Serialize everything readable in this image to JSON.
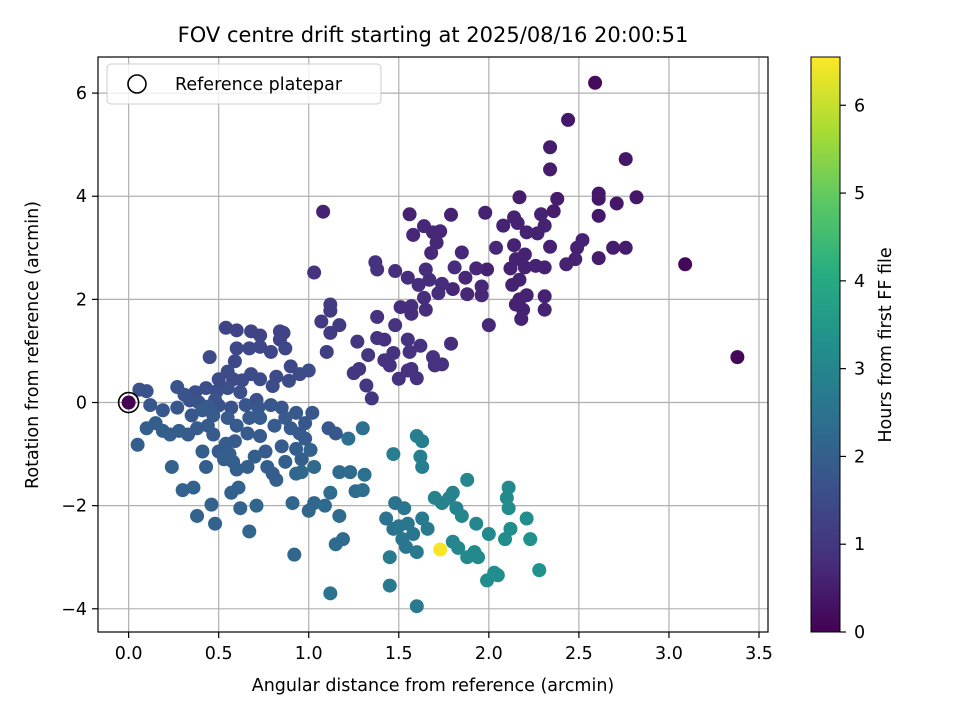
{
  "chart_data": {
    "type": "scatter",
    "title": "FOV centre drift starting at 2025/08/16 20:00:51",
    "xlabel": "Angular distance from reference (arcmin)",
    "ylabel": "Rotation from reference (arcmin)",
    "xlim": [
      -0.17,
      3.55
    ],
    "ylim": [
      -4.45,
      6.7
    ],
    "xticks": [
      0.0,
      0.5,
      1.0,
      1.5,
      2.0,
      2.5,
      3.0,
      3.5
    ],
    "xtick_labels": [
      "0.0",
      "0.5",
      "1.0",
      "1.5",
      "2.0",
      "2.5",
      "3.0",
      "3.5"
    ],
    "yticks": [
      -4,
      -2,
      0,
      2,
      4,
      6
    ],
    "ytick_labels": [
      "−4",
      "−2",
      "0",
      "2",
      "4",
      "6"
    ],
    "grid": true,
    "legend": {
      "position": "top-left",
      "entries": [
        "Reference platepar"
      ]
    },
    "reference_point": {
      "x": 0.0,
      "y": 0.0
    },
    "colorbar": {
      "label": "Hours from first FF file",
      "colormap": "viridis",
      "range": [
        0,
        6.55
      ],
      "ticks": [
        0,
        1,
        2,
        3,
        4,
        5,
        6
      ],
      "tick_labels": [
        "0",
        "1",
        "2",
        "3",
        "4",
        "5",
        "6"
      ]
    },
    "points": [
      [
        2.59,
        6.2,
        0.2
      ],
      [
        2.44,
        5.48,
        0.4
      ],
      [
        2.34,
        4.95,
        0.5
      ],
      [
        2.76,
        4.72,
        0.4
      ],
      [
        2.34,
        4.52,
        0.5
      ],
      [
        2.61,
        4.05,
        0.4
      ],
      [
        2.61,
        3.95,
        0.4
      ],
      [
        2.82,
        3.98,
        0.4
      ],
      [
        2.71,
        3.86,
        0.4
      ],
      [
        2.38,
        3.95,
        0.5
      ],
      [
        2.17,
        3.98,
        0.5
      ],
      [
        2.61,
        3.62,
        0.4
      ],
      [
        2.36,
        3.71,
        0.5
      ],
      [
        2.29,
        3.65,
        0.6
      ],
      [
        2.14,
        3.59,
        0.6
      ],
      [
        1.98,
        3.68,
        0.6
      ],
      [
        1.79,
        3.64,
        0.6
      ],
      [
        1.56,
        3.65,
        0.6
      ],
      [
        1.64,
        3.42,
        0.7
      ],
      [
        1.69,
        3.3,
        0.7
      ],
      [
        1.58,
        3.25,
        0.7
      ],
      [
        1.73,
        3.32,
        0.7
      ],
      [
        1.71,
        3.1,
        0.7
      ],
      [
        1.68,
        2.9,
        0.7
      ],
      [
        1.85,
        2.91,
        0.7
      ],
      [
        1.81,
        2.62,
        0.8
      ],
      [
        2.04,
        3.0,
        0.7
      ],
      [
        2.08,
        3.43,
        0.6
      ],
      [
        2.16,
        3.48,
        0.6
      ],
      [
        2.21,
        3.3,
        0.6
      ],
      [
        2.27,
        3.28,
        0.6
      ],
      [
        2.31,
        3.43,
        0.6
      ],
      [
        2.34,
        3.02,
        0.6
      ],
      [
        2.14,
        3.05,
        0.6
      ],
      [
        2.2,
        2.87,
        0.6
      ],
      [
        2.15,
        2.78,
        0.6
      ],
      [
        2.12,
        2.6,
        0.6
      ],
      [
        2.2,
        2.62,
        0.6
      ],
      [
        2.26,
        2.65,
        0.6
      ],
      [
        2.31,
        2.62,
        0.6
      ],
      [
        2.43,
        2.68,
        0.6
      ],
      [
        2.48,
        2.78,
        0.6
      ],
      [
        2.49,
        3.0,
        0.6
      ],
      [
        2.52,
        3.15,
        0.6
      ],
      [
        2.61,
        2.8,
        0.5
      ],
      [
        2.69,
        3.0,
        0.5
      ],
      [
        2.76,
        3.0,
        0.5
      ],
      [
        2.17,
        2.38,
        0.6
      ],
      [
        1.99,
        2.58,
        0.6
      ],
      [
        1.93,
        2.6,
        0.7
      ],
      [
        1.87,
        2.42,
        0.7
      ],
      [
        1.8,
        2.2,
        0.7
      ],
      [
        1.74,
        2.3,
        0.8
      ],
      [
        1.65,
        2.58,
        0.8
      ],
      [
        1.67,
        2.38,
        0.8
      ],
      [
        1.61,
        2.28,
        0.8
      ],
      [
        1.55,
        2.42,
        0.8
      ],
      [
        1.48,
        2.55,
        0.8
      ],
      [
        1.38,
        2.58,
        0.9
      ],
      [
        1.37,
        2.72,
        0.9
      ],
      [
        1.72,
        2.12,
        0.8
      ],
      [
        1.64,
        2.03,
        0.8
      ],
      [
        1.65,
        1.8,
        0.8
      ],
      [
        1.57,
        1.87,
        0.8
      ],
      [
        1.51,
        1.85,
        0.8
      ],
      [
        1.57,
        1.72,
        0.8
      ],
      [
        1.48,
        1.5,
        0.9
      ],
      [
        1.38,
        1.66,
        0.9
      ],
      [
        1.38,
        1.25,
        0.9
      ],
      [
        1.42,
        1.22,
        0.9
      ],
      [
        1.55,
        1.22,
        0.9
      ],
      [
        1.62,
        1.1,
        0.9
      ],
      [
        1.56,
        0.98,
        0.9
      ],
      [
        1.47,
        0.96,
        0.9
      ],
      [
        1.42,
        0.82,
        0.9
      ],
      [
        1.27,
        1.18,
        1.0
      ],
      [
        1.33,
        0.92,
        1.0
      ],
      [
        1.28,
        0.65,
        1.0
      ],
      [
        1.25,
        0.57,
        1.0
      ],
      [
        1.32,
        0.33,
        1.0
      ],
      [
        1.45,
        0.72,
        0.9
      ],
      [
        1.55,
        0.62,
        0.9
      ],
      [
        1.57,
        0.65,
        0.9
      ],
      [
        1.6,
        0.47,
        0.9
      ],
      [
        1.5,
        0.46,
        0.9
      ],
      [
        1.69,
        0.88,
        0.9
      ],
      [
        1.7,
        0.72,
        0.9
      ],
      [
        1.74,
        0.74,
        0.9
      ],
      [
        1.35,
        0.08,
        1.0
      ],
      [
        1.79,
        1.14,
        0.8
      ],
      [
        2.0,
        1.5,
        0.7
      ],
      [
        2.18,
        1.62,
        0.6
      ],
      [
        2.15,
        1.9,
        0.6
      ],
      [
        2.17,
        2.0,
        0.6
      ],
      [
        2.19,
        1.8,
        0.6
      ],
      [
        2.31,
        1.8,
        0.6
      ],
      [
        2.31,
        2.06,
        0.6
      ],
      [
        2.21,
        2.08,
        0.6
      ],
      [
        2.13,
        2.28,
        0.6
      ],
      [
        1.96,
        2.08,
        0.7
      ],
      [
        1.88,
        2.1,
        0.7
      ],
      [
        1.96,
        2.25,
        0.7
      ],
      [
        1.17,
        1.5,
        1.1
      ],
      [
        1.12,
        1.35,
        1.1
      ],
      [
        1.12,
        1.9,
        1.1
      ],
      [
        1.12,
        1.78,
        1.1
      ],
      [
        1.07,
        1.57,
        1.1
      ],
      [
        1.08,
        3.7,
        0.6
      ],
      [
        1.03,
        2.52,
        0.9
      ],
      [
        1.1,
        0.98,
        1.2
      ],
      [
        0.54,
        1.45,
        1.3
      ],
      [
        0.6,
        1.4,
        1.3
      ],
      [
        0.68,
        1.38,
        1.3
      ],
      [
        0.73,
        1.3,
        1.3
      ],
      [
        0.84,
        1.38,
        1.3
      ],
      [
        0.86,
        1.35,
        1.3
      ],
      [
        0.84,
        1.22,
        1.3
      ],
      [
        0.87,
        1.05,
        1.4
      ],
      [
        0.79,
        0.98,
        1.4
      ],
      [
        0.73,
        1.08,
        1.4
      ],
      [
        0.67,
        1.05,
        1.4
      ],
      [
        0.6,
        1.05,
        1.4
      ],
      [
        0.59,
        0.8,
        1.4
      ],
      [
        0.55,
        0.6,
        1.5
      ],
      [
        0.5,
        0.45,
        1.5
      ],
      [
        0.45,
        0.88,
        1.5
      ],
      [
        0.58,
        0.45,
        1.5
      ],
      [
        0.63,
        0.43,
        1.5
      ],
      [
        0.68,
        0.55,
        1.5
      ],
      [
        0.73,
        0.45,
        1.5
      ],
      [
        0.82,
        0.5,
        1.5
      ],
      [
        0.8,
        0.32,
        1.5
      ],
      [
        0.89,
        0.42,
        1.5
      ],
      [
        0.95,
        0.55,
        1.5
      ],
      [
        1.0,
        0.62,
        1.5
      ],
      [
        0.9,
        0.7,
        1.4
      ],
      [
        0.71,
        0.05,
        1.6
      ],
      [
        0.62,
        0.2,
        1.6
      ],
      [
        0.55,
        0.28,
        1.6
      ],
      [
        0.49,
        0.22,
        1.6
      ],
      [
        0.43,
        0.28,
        1.6
      ],
      [
        0.37,
        0.2,
        1.6
      ],
      [
        0.31,
        0.15,
        1.7
      ],
      [
        0.27,
        0.3,
        1.7
      ],
      [
        0.1,
        0.22,
        1.7
      ],
      [
        0.06,
        0.25,
        1.7
      ],
      [
        0.34,
        0.04,
        1.7
      ],
      [
        0.39,
        0.0,
        1.7
      ],
      [
        0.48,
        0.05,
        1.7
      ],
      [
        0.5,
        -0.06,
        1.7
      ],
      [
        0.57,
        -0.1,
        1.7
      ],
      [
        0.65,
        -0.05,
        1.8
      ],
      [
        0.72,
        -0.1,
        1.8
      ],
      [
        0.79,
        -0.05,
        1.8
      ],
      [
        0.85,
        -0.1,
        1.8
      ],
      [
        0.93,
        -0.2,
        1.8
      ],
      [
        1.02,
        -0.2,
        1.8
      ],
      [
        0.98,
        -0.4,
        1.8
      ],
      [
        1.11,
        -0.5,
        1.8
      ],
      [
        1.15,
        -0.6,
        1.8
      ],
      [
        0.12,
        -0.05,
        1.8
      ],
      [
        0.19,
        -0.15,
        1.8
      ],
      [
        0.27,
        -0.1,
        1.8
      ],
      [
        0.35,
        -0.25,
        1.8
      ],
      [
        0.41,
        -0.15,
        1.9
      ],
      [
        0.44,
        -0.08,
        1.9
      ],
      [
        0.47,
        -0.25,
        1.9
      ],
      [
        0.55,
        -0.3,
        1.9
      ],
      [
        0.6,
        -0.45,
        1.9
      ],
      [
        0.67,
        -0.3,
        1.9
      ],
      [
        0.73,
        -0.3,
        1.9
      ],
      [
        0.81,
        -0.45,
        1.9
      ],
      [
        0.87,
        -0.3,
        1.9
      ],
      [
        0.9,
        -0.5,
        1.9
      ],
      [
        0.95,
        -0.6,
        1.9
      ],
      [
        0.98,
        -0.7,
        1.9
      ],
      [
        0.85,
        -0.85,
        1.9
      ],
      [
        0.76,
        -0.95,
        1.9
      ],
      [
        0.73,
        -0.65,
        1.9
      ],
      [
        0.66,
        -0.6,
        1.9
      ],
      [
        0.59,
        -0.75,
        1.9
      ],
      [
        0.54,
        -0.8,
        1.9
      ],
      [
        0.5,
        -0.95,
        1.9
      ],
      [
        0.47,
        -0.62,
        1.9
      ],
      [
        0.44,
        -0.45,
        1.9
      ],
      [
        0.38,
        -0.5,
        1.9
      ],
      [
        0.33,
        -0.62,
        1.9
      ],
      [
        0.28,
        -0.55,
        2.0
      ],
      [
        0.23,
        -0.62,
        2.0
      ],
      [
        0.19,
        -0.55,
        2.0
      ],
      [
        0.15,
        -0.4,
        2.0
      ],
      [
        0.1,
        -0.5,
        2.0
      ],
      [
        0.05,
        -0.82,
        2.0
      ],
      [
        0.41,
        -0.95,
        2.0
      ],
      [
        0.43,
        -1.25,
        2.0
      ],
      [
        0.53,
        -1.1,
        2.0
      ],
      [
        0.56,
        -1.0,
        2.0
      ],
      [
        0.58,
        -1.15,
        2.0
      ],
      [
        0.6,
        -1.3,
        2.0
      ],
      [
        0.66,
        -1.25,
        2.0
      ],
      [
        0.7,
        -1.05,
        2.0
      ],
      [
        0.77,
        -1.25,
        2.0
      ],
      [
        0.8,
        -1.38,
        2.0
      ],
      [
        0.82,
        -1.5,
        2.0
      ],
      [
        0.87,
        -1.15,
        2.0
      ],
      [
        0.93,
        -0.9,
        2.0
      ],
      [
        0.96,
        -1.1,
        2.0
      ],
      [
        1.01,
        -0.92,
        2.1
      ],
      [
        0.24,
        -1.25,
        2.1
      ],
      [
        0.3,
        -1.7,
        2.1
      ],
      [
        0.36,
        -1.65,
        2.1
      ],
      [
        0.38,
        -2.2,
        2.1
      ],
      [
        0.46,
        -1.98,
        2.1
      ],
      [
        0.48,
        -2.35,
        2.1
      ],
      [
        0.57,
        -1.75,
        2.1
      ],
      [
        0.61,
        -1.65,
        2.1
      ],
      [
        0.62,
        -2.05,
        2.1
      ],
      [
        0.67,
        -2.5,
        2.2
      ],
      [
        0.71,
        -2.0,
        2.2
      ],
      [
        0.93,
        -1.38,
        2.2
      ],
      [
        0.96,
        -1.35,
        2.2
      ],
      [
        0.91,
        -1.95,
        2.2
      ],
      [
        0.92,
        -2.95,
        2.2
      ],
      [
        1.0,
        -2.1,
        2.2
      ],
      [
        1.03,
        -1.95,
        2.2
      ],
      [
        1.03,
        -1.25,
        2.3
      ],
      [
        1.09,
        -2.0,
        2.3
      ],
      [
        1.12,
        -1.75,
        2.3
      ],
      [
        1.17,
        -2.2,
        2.3
      ],
      [
        1.15,
        -2.75,
        2.3
      ],
      [
        1.19,
        -2.65,
        2.3
      ],
      [
        1.17,
        -1.35,
        2.3
      ],
      [
        1.23,
        -1.35,
        2.3
      ],
      [
        1.26,
        -1.72,
        2.3
      ],
      [
        1.3,
        -1.7,
        2.4
      ],
      [
        1.22,
        -0.7,
        2.4
      ],
      [
        1.3,
        -0.5,
        2.4
      ],
      [
        1.31,
        -1.4,
        2.4
      ],
      [
        1.12,
        -3.7,
        2.5
      ],
      [
        1.43,
        -2.25,
        2.5
      ],
      [
        1.48,
        -1.95,
        2.5
      ],
      [
        1.47,
        -2.45,
        2.5
      ],
      [
        1.5,
        -2.4,
        2.6
      ],
      [
        1.53,
        -2.05,
        2.6
      ],
      [
        1.55,
        -2.35,
        2.6
      ],
      [
        1.52,
        -2.65,
        2.6
      ],
      [
        1.54,
        -2.8,
        2.6
      ],
      [
        1.58,
        -2.55,
        2.6
      ],
      [
        1.6,
        -2.9,
        2.7
      ],
      [
        1.63,
        -2.25,
        2.7
      ],
      [
        1.66,
        -2.45,
        2.7
      ],
      [
        1.45,
        -3.0,
        2.7
      ],
      [
        1.45,
        -3.55,
        2.7
      ],
      [
        1.6,
        -3.95,
        2.7
      ],
      [
        1.6,
        -0.65,
        2.8
      ],
      [
        1.63,
        -0.75,
        2.8
      ],
      [
        1.62,
        -1.05,
        2.8
      ],
      [
        1.63,
        -1.25,
        2.8
      ],
      [
        1.47,
        -1.0,
        2.8
      ],
      [
        1.7,
        -1.85,
        2.9
      ],
      [
        1.74,
        -1.95,
        2.9
      ],
      [
        1.78,
        -1.85,
        2.9
      ],
      [
        1.8,
        -1.75,
        2.9
      ],
      [
        1.82,
        -2.05,
        2.9
      ],
      [
        1.85,
        -2.2,
        3.0
      ],
      [
        1.88,
        -1.5,
        3.0
      ],
      [
        1.93,
        -2.35,
        3.0
      ],
      [
        1.8,
        -2.7,
        3.0
      ],
      [
        1.83,
        -2.82,
        3.0
      ],
      [
        1.88,
        -3.0,
        3.1
      ],
      [
        1.92,
        -2.9,
        3.1
      ],
      [
        1.94,
        -3.0,
        3.1
      ],
      [
        2.0,
        -2.55,
        3.1
      ],
      [
        1.99,
        -3.45,
        3.2
      ],
      [
        2.03,
        -3.3,
        3.2
      ],
      [
        2.05,
        -3.35,
        3.2
      ],
      [
        2.11,
        -1.65,
        3.1
      ],
      [
        2.1,
        -1.85,
        3.1
      ],
      [
        2.11,
        -2.05,
        3.2
      ],
      [
        2.12,
        -2.45,
        3.2
      ],
      [
        2.09,
        -2.65,
        3.2
      ],
      [
        2.21,
        -2.25,
        3.2
      ],
      [
        2.23,
        -2.65,
        3.3
      ],
      [
        2.28,
        -3.25,
        3.3
      ],
      [
        1.73,
        -2.85,
        6.5
      ],
      [
        3.09,
        2.68,
        0.1
      ],
      [
        3.38,
        0.88,
        0.1
      ],
      [
        0.0,
        0.0,
        0.0
      ]
    ]
  }
}
